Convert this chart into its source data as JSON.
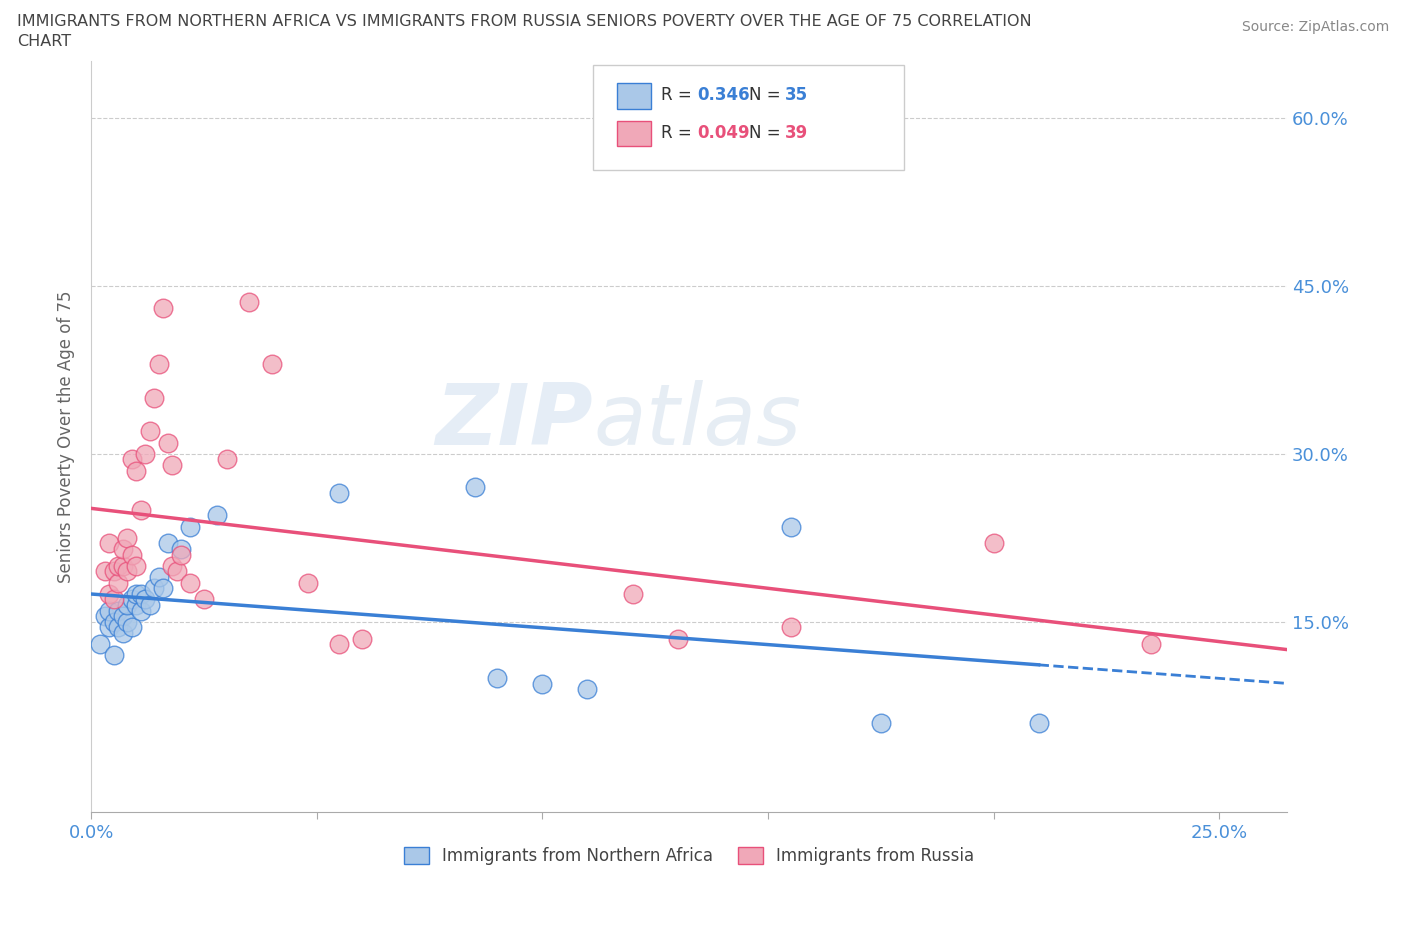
{
  "title_line1": "IMMIGRANTS FROM NORTHERN AFRICA VS IMMIGRANTS FROM RUSSIA SENIORS POVERTY OVER THE AGE OF 75 CORRELATION",
  "title_line2": "CHART",
  "source": "Source: ZipAtlas.com",
  "ylabel": "Seniors Poverty Over the Age of 75",
  "xlim": [
    0.0,
    0.265
  ],
  "ylim": [
    -0.02,
    0.65
  ],
  "r_northern": 0.346,
  "n_northern": 35,
  "r_russia": 0.049,
  "n_russia": 39,
  "color_northern": "#aac8e8",
  "color_russia": "#f0a8b8",
  "line_color_northern": "#3a7fd5",
  "line_color_russia": "#e8507a",
  "watermark_zip": "ZIP",
  "watermark_atlas": "atlas",
  "northern_africa_x": [
    0.002,
    0.003,
    0.004,
    0.004,
    0.005,
    0.005,
    0.006,
    0.006,
    0.007,
    0.007,
    0.008,
    0.008,
    0.009,
    0.009,
    0.01,
    0.01,
    0.011,
    0.011,
    0.012,
    0.013,
    0.014,
    0.015,
    0.016,
    0.017,
    0.02,
    0.022,
    0.028,
    0.055,
    0.085,
    0.09,
    0.1,
    0.11,
    0.155,
    0.175,
    0.21
  ],
  "northern_africa_y": [
    0.13,
    0.155,
    0.145,
    0.16,
    0.12,
    0.15,
    0.145,
    0.16,
    0.14,
    0.155,
    0.15,
    0.165,
    0.145,
    0.17,
    0.165,
    0.175,
    0.16,
    0.175,
    0.17,
    0.165,
    0.18,
    0.19,
    0.18,
    0.22,
    0.215,
    0.235,
    0.245,
    0.265,
    0.27,
    0.1,
    0.095,
    0.09,
    0.235,
    0.06,
    0.06
  ],
  "russia_x": [
    0.003,
    0.004,
    0.004,
    0.005,
    0.005,
    0.006,
    0.006,
    0.007,
    0.007,
    0.008,
    0.008,
    0.009,
    0.009,
    0.01,
    0.01,
    0.011,
    0.012,
    0.013,
    0.014,
    0.015,
    0.016,
    0.017,
    0.018,
    0.018,
    0.019,
    0.02,
    0.022,
    0.025,
    0.03,
    0.035,
    0.04,
    0.048,
    0.055,
    0.06,
    0.12,
    0.13,
    0.155,
    0.2,
    0.235
  ],
  "russia_y": [
    0.195,
    0.175,
    0.22,
    0.17,
    0.195,
    0.185,
    0.2,
    0.2,
    0.215,
    0.195,
    0.225,
    0.21,
    0.295,
    0.2,
    0.285,
    0.25,
    0.3,
    0.32,
    0.35,
    0.38,
    0.43,
    0.31,
    0.2,
    0.29,
    0.195,
    0.21,
    0.185,
    0.17,
    0.295,
    0.435,
    0.38,
    0.185,
    0.13,
    0.135,
    0.175,
    0.135,
    0.145,
    0.22,
    0.13
  ]
}
